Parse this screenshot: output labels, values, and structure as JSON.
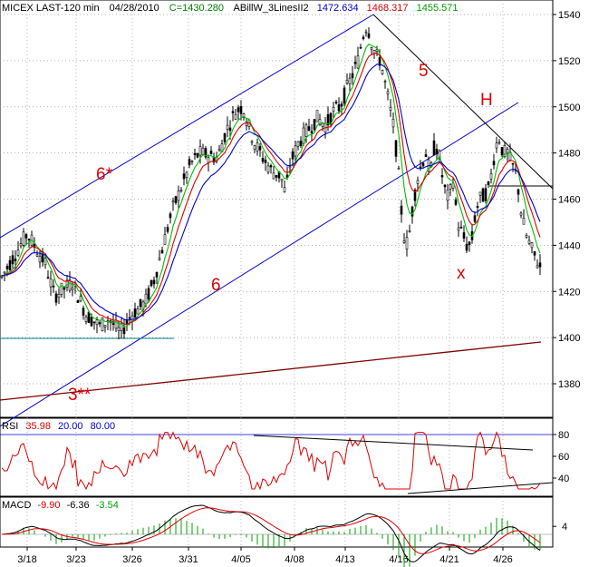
{
  "header": {
    "symbol": "MICEX LAST-120 min",
    "date": "04/28/2010",
    "close": "C=1430.280",
    "indicator_name": "ABillW_3LinesII2",
    "line1_value": "1472.634",
    "line2_value": "1468.317",
    "line3_value": "1455.571"
  },
  "colors": {
    "blue": "#0000d0",
    "red": "#e00000",
    "green": "#00c000",
    "trend_dark": "#000000",
    "trend_brown": "#800000",
    "support": "#008080"
  },
  "wave_labels": {
    "six_star": "6*",
    "five": "5",
    "h": "H",
    "six": "6",
    "x": "x",
    "three_dstar": "3**"
  },
  "rsi_header": {
    "name": "RSI",
    "value": "35.98",
    "level_low": "20.00",
    "level_high": "80.00"
  },
  "macd_header": {
    "name": "MACD",
    "value1": "-9.90",
    "value2": "-6.36",
    "value3": "-3.54"
  },
  "chart_data": {
    "type": "candlestick",
    "x_tick_labels": [
      "3/18",
      "3/23",
      "3/26",
      "3/31",
      "4/05",
      "4/08",
      "4/13",
      "4/16",
      "4/21",
      "4/26"
    ],
    "ylim": [
      1360,
      1545
    ],
    "y_ticks": [
      1380,
      1400,
      1420,
      1440,
      1460,
      1480,
      1500,
      1520,
      1540
    ],
    "price_path_x": [
      0,
      30,
      50,
      60,
      80,
      95,
      110,
      120,
      133,
      145,
      160,
      170,
      180,
      190,
      200,
      210,
      220,
      240,
      250,
      260,
      268,
      280,
      290,
      300,
      310,
      315,
      320,
      330,
      340,
      350,
      360,
      368,
      375,
      385,
      395,
      400,
      405,
      410,
      415,
      420,
      425,
      430,
      435,
      440,
      445,
      450,
      455,
      460,
      465,
      470,
      475,
      480,
      485,
      490,
      495,
      500,
      505,
      510,
      515,
      520,
      525,
      530,
      535,
      540,
      545,
      550,
      555,
      560,
      565,
      570,
      575,
      580,
      585,
      590,
      597
    ],
    "price_path": [
      1425,
      1445,
      1432,
      1418,
      1424,
      1410,
      1405,
      1408,
      1402,
      1410,
      1415,
      1425,
      1440,
      1455,
      1465,
      1475,
      1480,
      1478,
      1490,
      1498,
      1500,
      1485,
      1478,
      1472,
      1470,
      1462,
      1475,
      1485,
      1490,
      1495,
      1492,
      1498,
      1500,
      1510,
      1520,
      1530,
      1536,
      1528,
      1522,
      1520,
      1510,
      1500,
      1490,
      1470,
      1445,
      1440,
      1455,
      1468,
      1475,
      1480,
      1470,
      1485,
      1478,
      1465,
      1460,
      1468,
      1450,
      1445,
      1440,
      1440,
      1455,
      1460,
      1462,
      1465,
      1478,
      1488,
      1480,
      1480,
      1475,
      1470,
      1455,
      1445,
      1440,
      1435,
      1430
    ],
    "rsi_ylim": [
      20,
      90
    ],
    "rsi_ticks": [
      40,
      60,
      80
    ],
    "macd_ticks": [
      4
    ]
  }
}
